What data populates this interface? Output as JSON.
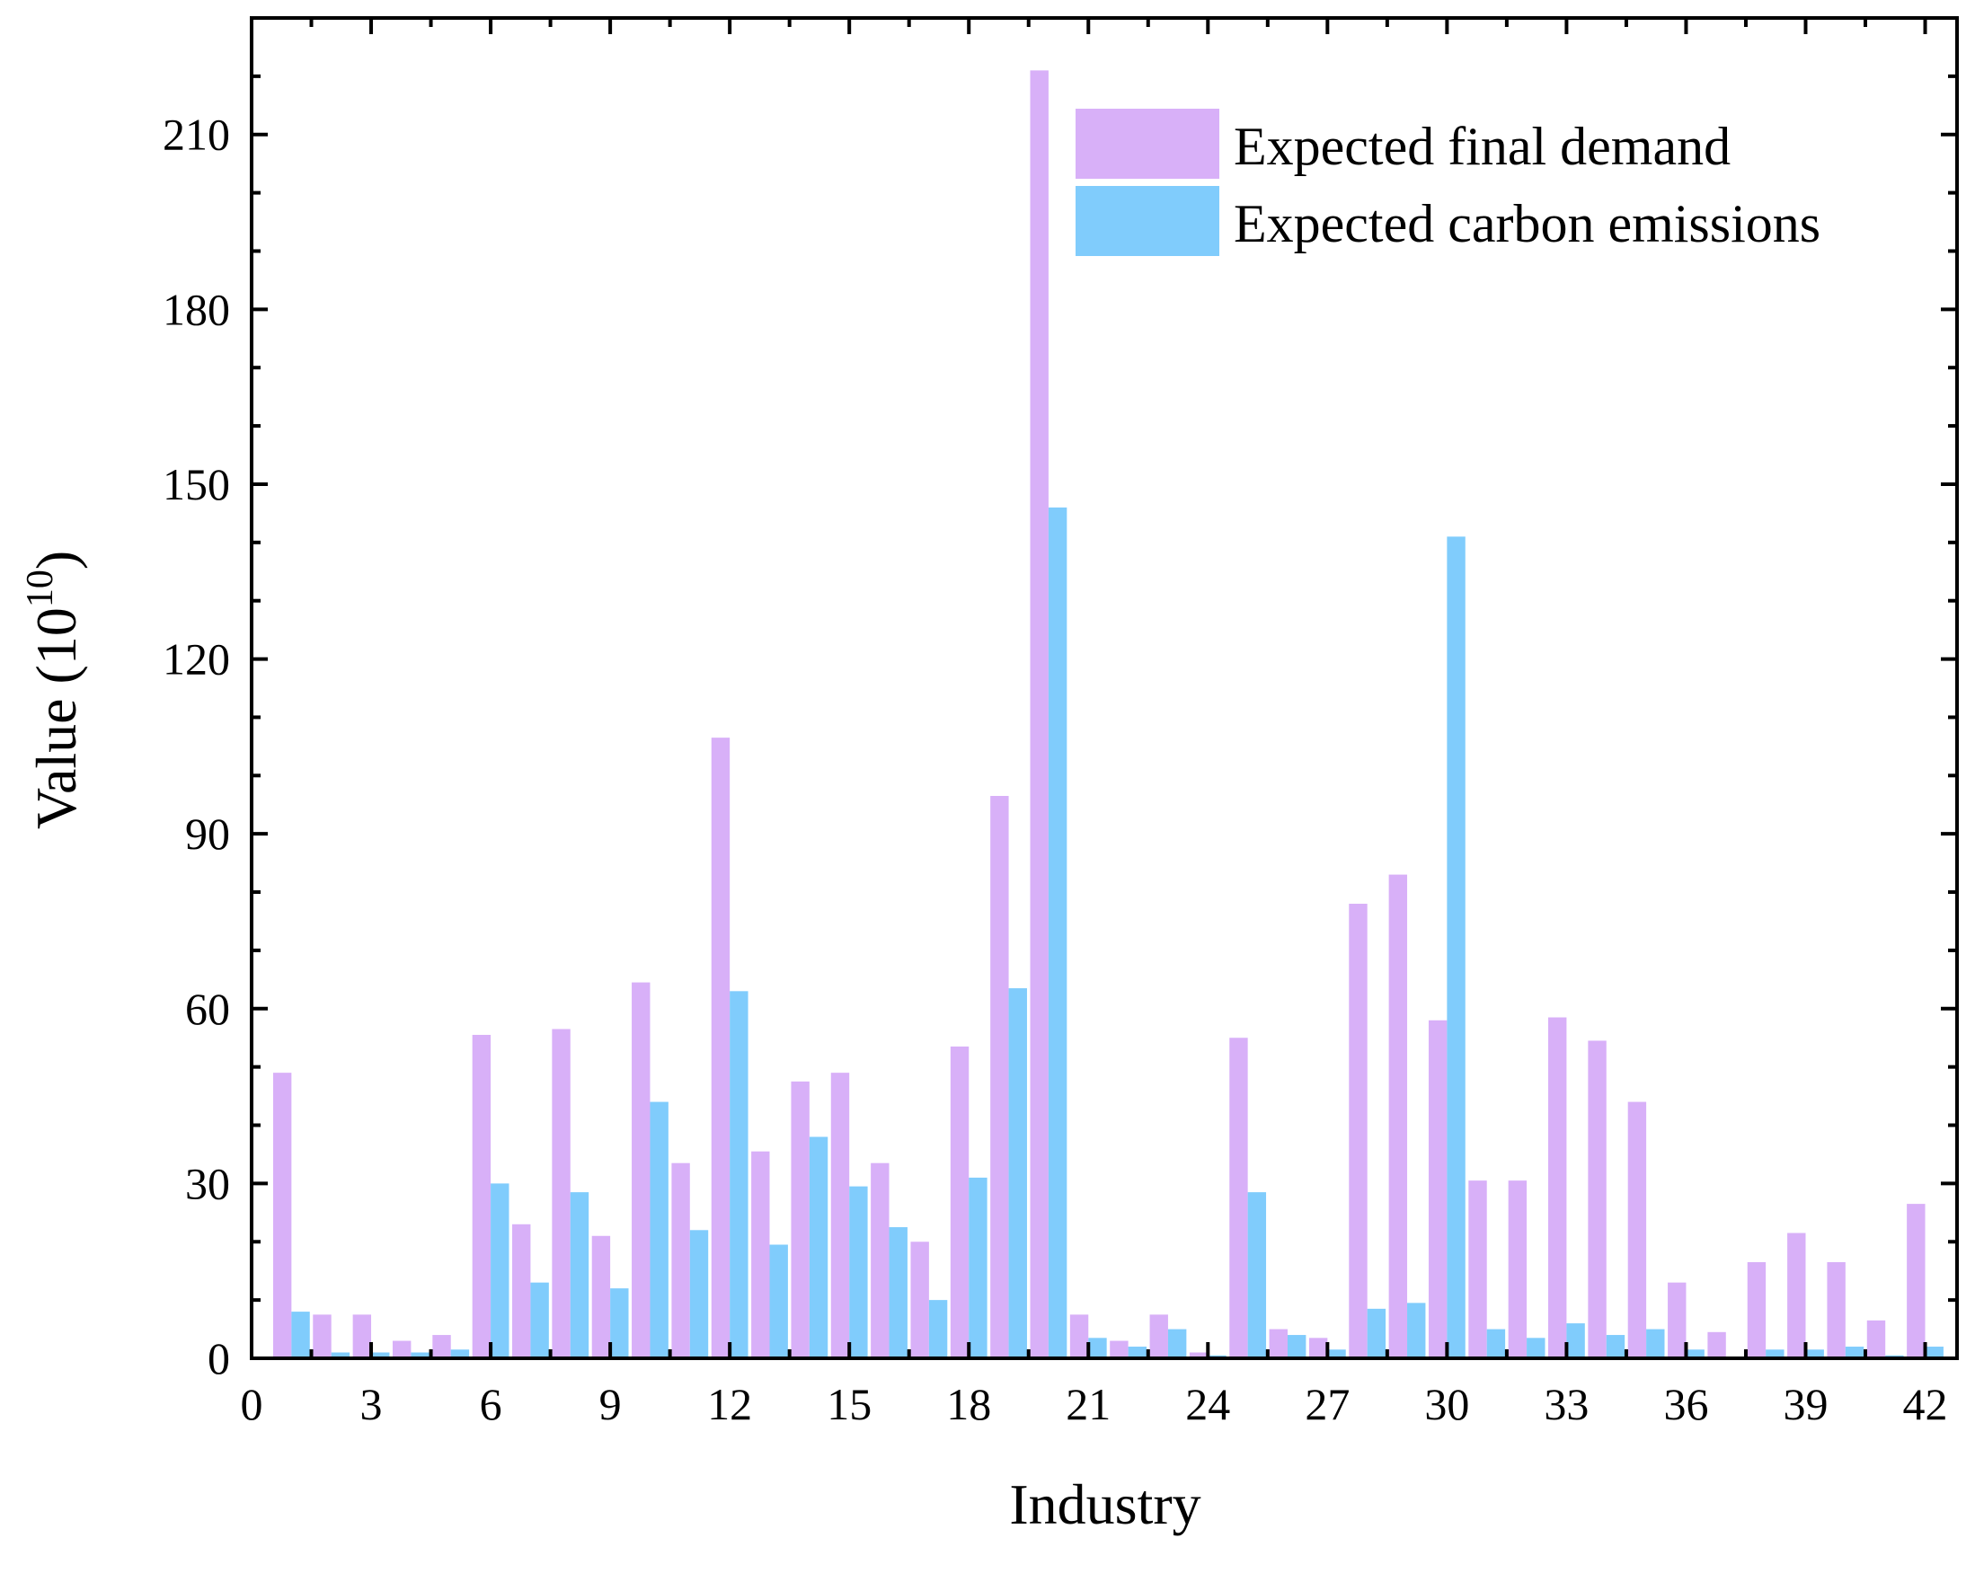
{
  "chart_data": {
    "type": "bar",
    "title": "",
    "xlabel": "Industry",
    "ylabel_main": "Value (10",
    "ylabel_exponent": "10",
    "ylabel_close": ")",
    "xlim": [
      0,
      42.8
    ],
    "ylim": [
      0,
      230
    ],
    "xticks": [
      0,
      3,
      6,
      9,
      12,
      15,
      18,
      21,
      24,
      27,
      30,
      33,
      36,
      39,
      42
    ],
    "xtick_labels": [
      "0",
      "3",
      "6",
      "9",
      "12",
      "15",
      "18",
      "21",
      "24",
      "27",
      "30",
      "33",
      "36",
      "39",
      "42"
    ],
    "yticks": [
      0,
      30,
      60,
      90,
      120,
      150,
      180,
      210
    ],
    "ytick_labels": [
      "0",
      "30",
      "60",
      "90",
      "120",
      "150",
      "180",
      "210"
    ],
    "legend_position": "top-right",
    "categories": [
      1,
      2,
      3,
      4,
      5,
      6,
      7,
      8,
      9,
      10,
      11,
      12,
      13,
      14,
      15,
      16,
      17,
      18,
      19,
      20,
      21,
      22,
      23,
      24,
      25,
      26,
      27,
      28,
      29,
      30,
      31,
      32,
      33,
      34,
      35,
      36,
      37,
      38,
      39,
      40,
      41,
      42
    ],
    "series": [
      {
        "name": "Expected final demand",
        "color": "#d8b0f8",
        "values": [
          49,
          7.5,
          7.5,
          3,
          4,
          55.5,
          23,
          56.5,
          21,
          64.5,
          33.5,
          106.5,
          35.5,
          47.5,
          49,
          33.5,
          20,
          53.5,
          96.5,
          221,
          7.5,
          3,
          7.5,
          1,
          55,
          5,
          3.5,
          78,
          83,
          58,
          30.5,
          30.5,
          58.5,
          54.5,
          44,
          13,
          4.5,
          16.5,
          21.5,
          16.5,
          6.5,
          26.5
        ]
      },
      {
        "name": "Expected carbon emissions",
        "color": "#80ccfc",
        "values": [
          8,
          1,
          1,
          1,
          1.5,
          30,
          13,
          28.5,
          12,
          44,
          22,
          63,
          19.5,
          38,
          29.5,
          22.5,
          10,
          31,
          63.5,
          146,
          3.5,
          2,
          5,
          0.5,
          28.5,
          4,
          1.5,
          8.5,
          9.5,
          141,
          5,
          3.5,
          6,
          4,
          5,
          1.5,
          0,
          1.5,
          1.5,
          2,
          0.5,
          2
        ]
      }
    ]
  }
}
